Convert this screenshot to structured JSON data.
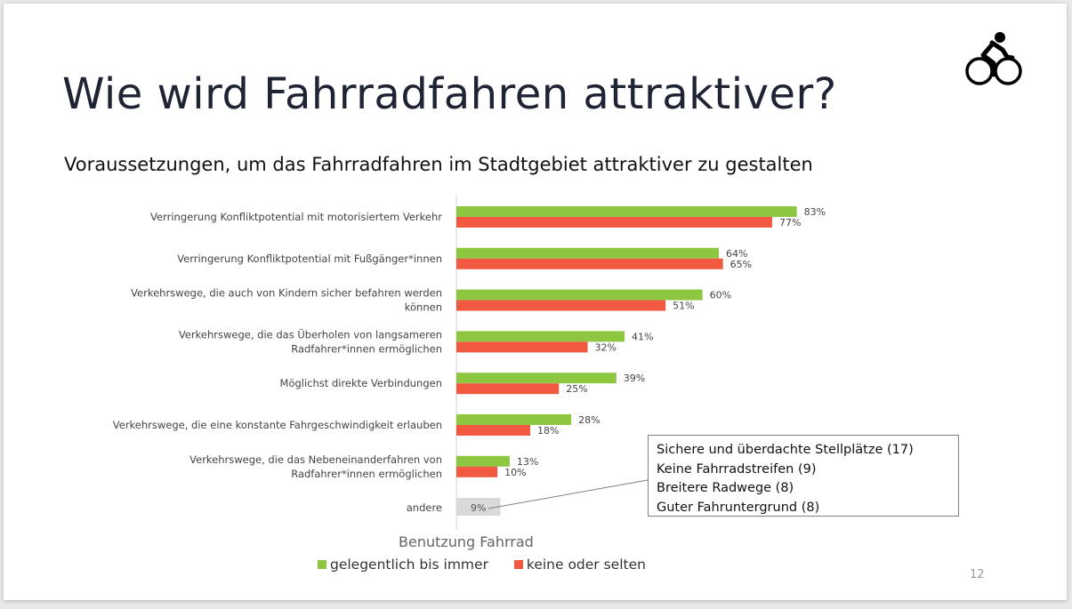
{
  "slide": {
    "title": "Wie wird Fahrradfahren attraktiver?",
    "page_number": "12",
    "icon": "bicycle-icon"
  },
  "chart_data": {
    "type": "bar",
    "orientation": "horizontal",
    "title": "Voraussetzungen, um das Fahrradfahren im Stadtgebiet attraktiver zu gestalten",
    "categories": [
      [
        "Verringerung Konfliktpotential mit motorisiertem Verkehr"
      ],
      [
        "Verringerung Konfliktpotential mit Fußgänger*innen"
      ],
      [
        "Verkehrswege, die auch von Kindern sicher befahren werden",
        "können"
      ],
      [
        "Verkehrswege, die das Überholen von langsameren",
        "Radfahrer*innen ermöglichen"
      ],
      [
        "Möglichst direkte Verbindungen"
      ],
      [
        "Verkehrswege, die eine konstante Fahrgeschwindigkeit erlauben"
      ],
      [
        "Verkehrswege, die das Nebeneinanderfahren von",
        "Radfahrer*innen ermöglichen"
      ]
    ],
    "series": [
      {
        "name": "gelegentlich bis immer",
        "color": "#8dc63f",
        "values": [
          83,
          64,
          60,
          41,
          39,
          28,
          13
        ]
      },
      {
        "name": "keine oder selten",
        "color": "#f15a40",
        "values": [
          77,
          65,
          51,
          32,
          25,
          18,
          10
        ]
      }
    ],
    "other": {
      "label": "andere",
      "value": 9,
      "color": "#d9d9d9"
    },
    "value_suffix": "%",
    "xlim": [
      0,
      100
    ],
    "legend_title": "Benutzung Fahrrad",
    "legend_position": "bottom"
  },
  "callout": {
    "items": [
      "Sichere und überdachte Stellplätze (17)",
      "Keine Fahrradstreifen (9)",
      "Breitere Radwege (8)",
      "Guter Fahruntergrund (8)"
    ]
  }
}
